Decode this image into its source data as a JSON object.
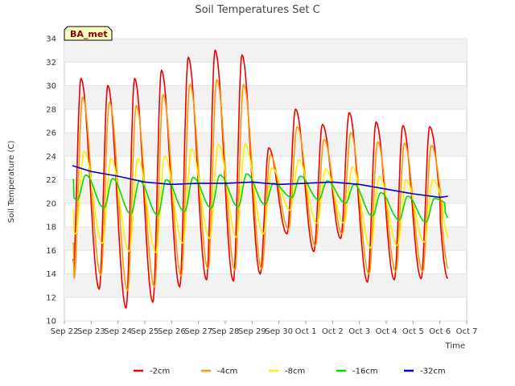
{
  "chart_data": {
    "type": "line",
    "title": "Soil Temperatures Set C",
    "xlabel": "Time",
    "ylabel": "Soil Temperature (C)",
    "badge": "BA_met",
    "ylim": [
      10,
      34
    ],
    "yticks": [
      "10",
      "12",
      "14",
      "16",
      "18",
      "20",
      "22",
      "24",
      "26",
      "28",
      "30",
      "32",
      "34"
    ],
    "xlim": [
      0,
      15
    ],
    "xticks": [
      "Sep 22",
      "Sep 23",
      "Sep 24",
      "Sep 25",
      "Sep 26",
      "Sep 27",
      "Sep 28",
      "Sep 29",
      "Sep 30",
      "Oct 1",
      "Oct 2",
      "Oct 3",
      "Oct 4",
      "Oct 5",
      "Oct 6",
      "Oct 7"
    ],
    "grid": "horizontal-bands",
    "legend": "bottom",
    "x_unit": "days since Sep 22 00:00",
    "series": [
      {
        "name": "-2cm",
        "color": "#ee0000",
        "min": [
          13.0,
          12.7,
          11.1,
          11.6,
          12.9,
          13.5,
          13.4,
          14.0,
          17.4,
          15.9,
          17.0,
          13.3,
          13.5,
          13.6,
          16.2
        ],
        "max": [
          30.6,
          30.0,
          30.6,
          31.3,
          32.4,
          33.0,
          32.6,
          24.7,
          28.0,
          26.7,
          27.7,
          26.9,
          26.6,
          26.5
        ],
        "start": 15.2,
        "end": 16.2
      },
      {
        "name": "-4cm",
        "color": "#ff9900",
        "min": [
          13.6,
          13.9,
          12.6,
          12.9,
          13.8,
          14.4,
          14.3,
          14.4,
          17.8,
          16.4,
          17.4,
          14.0,
          14.2,
          14.2,
          17.0
        ],
        "max": [
          29.0,
          28.6,
          28.3,
          29.2,
          30.1,
          30.5,
          30.1,
          24.1,
          26.5,
          25.4,
          26.0,
          25.2,
          25.1,
          24.9
        ],
        "start": 16.6,
        "end": 17.0
      },
      {
        "name": "-8cm",
        "color": "#ffee00",
        "min": [
          17.4,
          16.6,
          15.9,
          15.8,
          16.6,
          17.0,
          17.1,
          17.4,
          19.4,
          18.3,
          18.3,
          16.2,
          16.4,
          16.7,
          18.4
        ],
        "max": [
          24.4,
          23.8,
          23.8,
          24.0,
          24.6,
          25.0,
          25.0,
          23.0,
          23.7,
          22.9,
          23.1,
          22.3,
          22.0,
          22.0
        ],
        "start": 19.4,
        "end": 18.4
      },
      {
        "name": "-16cm",
        "color": "#00dd00",
        "min": [
          20.3,
          19.6,
          19.1,
          19.0,
          19.3,
          19.6,
          19.7,
          19.9,
          20.5,
          20.3,
          20.0,
          18.9,
          18.6,
          18.4,
          19.8
        ],
        "max": [
          22.4,
          22.1,
          21.9,
          22.0,
          22.2,
          22.4,
          22.5,
          21.7,
          22.3,
          21.9,
          21.6,
          20.9,
          20.6,
          20.4
        ],
        "start": 22.0,
        "end": 19.8
      },
      {
        "name": "-32cm",
        "color": "#0000cc",
        "x": [
          0.3,
          1.0,
          2.0,
          3.0,
          4.0,
          5.0,
          6.0,
          7.0,
          8.0,
          9.0,
          10.0,
          11.0,
          12.0,
          13.0,
          14.0,
          14.3
        ],
        "y": [
          23.2,
          22.7,
          22.3,
          21.8,
          21.6,
          21.7,
          21.7,
          21.8,
          21.6,
          21.7,
          21.8,
          21.6,
          21.2,
          20.8,
          20.5,
          20.6
        ]
      }
    ]
  }
}
